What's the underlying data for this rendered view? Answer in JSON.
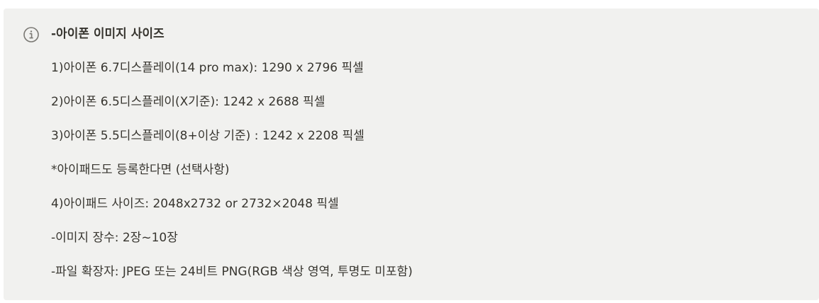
{
  "callout": {
    "icon": "info-icon",
    "title": "-아이폰 이미지 사이즈",
    "lines": [
      "1)아이폰 6.7디스플레이(14 pro max): 1290 x 2796 픽셀",
      "2)아이폰 6.5디스플레이(X기준): 1242 x 2688 픽셀",
      "3)아이폰 5.5디스플레이(8+이상 기준) : 1242 x 2208 픽셀",
      "*아이패드도 등록한다면 (선택사항)",
      "4)아이패드 사이즈: 2048x2732 or 2732×2048 픽셀",
      "-이미지 장수: 2장~10장",
      "-파일 확장자: JPEG 또는 24비트 PNG(RGB 색상 영역, 투명도 미포함)"
    ]
  },
  "colors": {
    "background": "#f1f1ef",
    "text": "#37352f",
    "icon": "#7a7873"
  }
}
